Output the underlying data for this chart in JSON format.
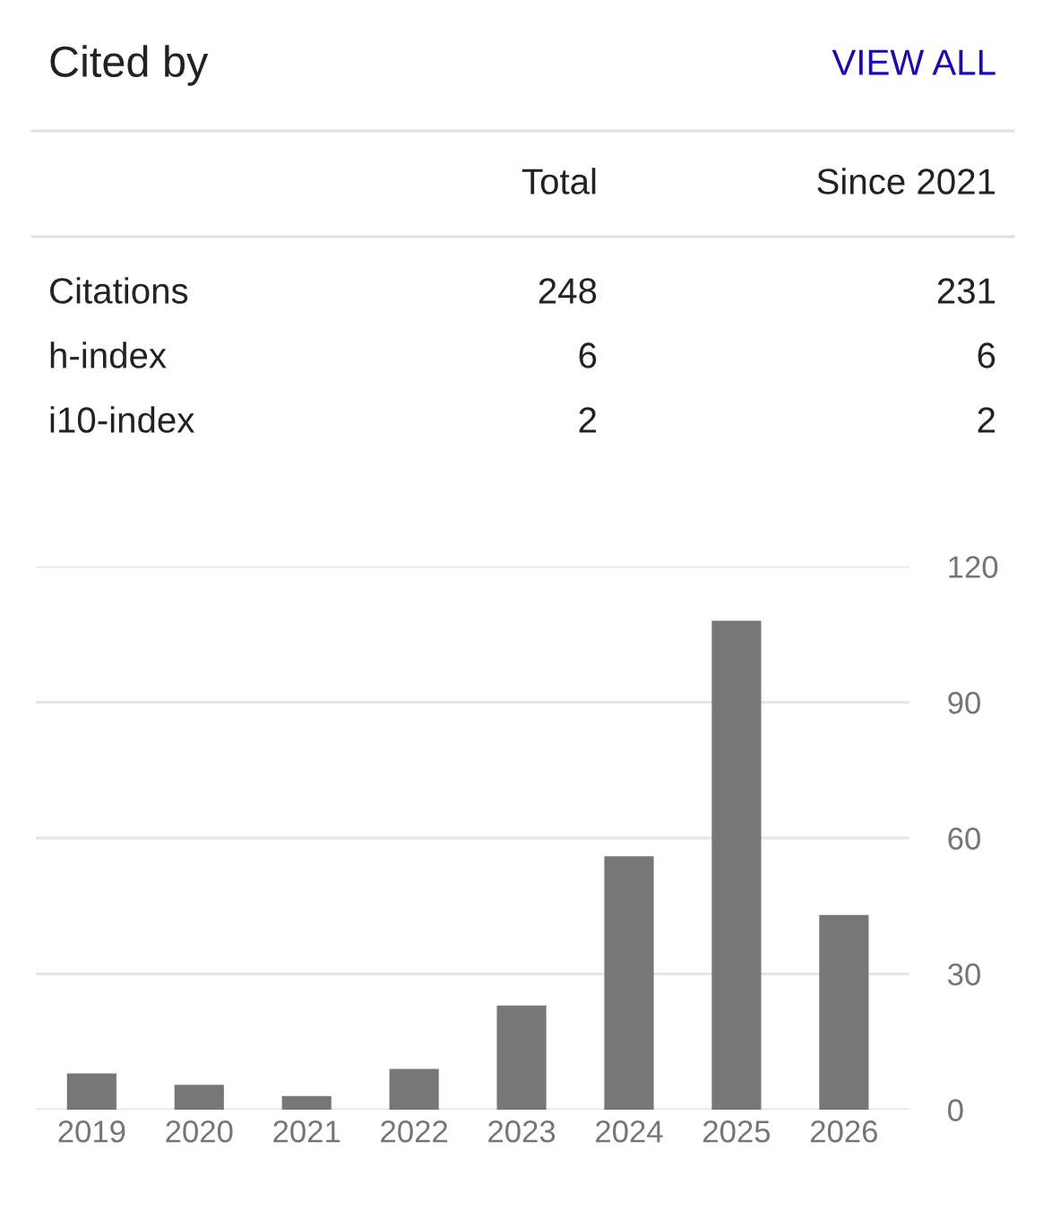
{
  "chart_data": {
    "type": "bar",
    "title": "Cited by",
    "annotations": [
      "VIEW ALL",
      "Total",
      "Since 2021",
      "Citations",
      "248",
      "231",
      "h-index",
      "6",
      "6",
      "i10-index",
      "2",
      "2"
    ],
    "categories": [
      "2019",
      "2020",
      "2021",
      "2022",
      "2023",
      "2024",
      "2025",
      "2026"
    ],
    "values": [
      8,
      5.5,
      3,
      9,
      23,
      56,
      108,
      43
    ],
    "color": "#777777",
    "ylim": [
      0,
      120
    ],
    "yticks": [
      0,
      30,
      60,
      90,
      120
    ],
    "grid": "y"
  }
}
